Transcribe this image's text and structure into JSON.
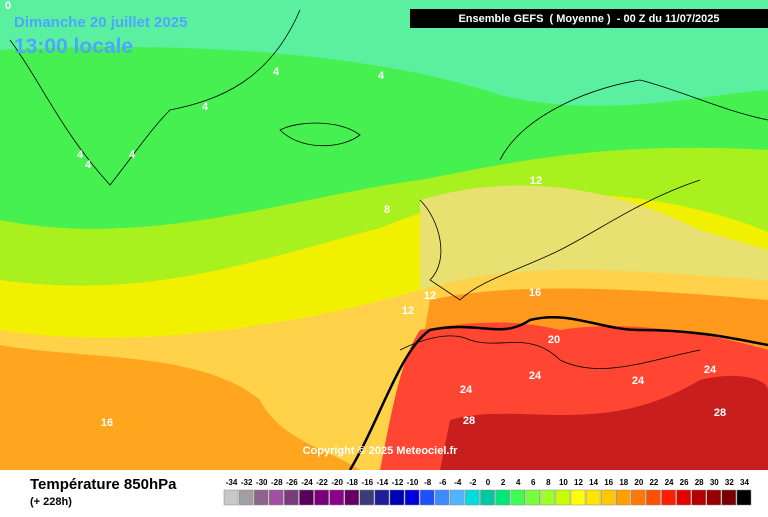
{
  "header": {
    "date": "Dimanche 20 juillet 2025",
    "time": "13:00 locale",
    "run": "Ensemble GEFS  ( Moyenne )  - 00 Z du 11/07/2025"
  },
  "map": {
    "contour_labels": [
      0,
      4,
      4,
      4,
      4,
      4,
      4,
      8,
      12,
      12,
      12,
      16,
      16,
      20,
      24,
      24,
      24,
      24,
      28,
      28
    ],
    "copyright": "Copyright © 2025 Meteociel.fr"
  },
  "legend": {
    "title": "Température 850hPa",
    "subtitle": "(+ 228h)",
    "ticks": [
      -34,
      -32,
      -30,
      -28,
      -26,
      -24,
      -22,
      -20,
      -18,
      -16,
      -14,
      -12,
      -10,
      -8,
      -6,
      -4,
      -2,
      0,
      2,
      4,
      6,
      8,
      10,
      12,
      14,
      16,
      18,
      20,
      22,
      24,
      26,
      28,
      30,
      32,
      34
    ],
    "colors": [
      "#c8c8c8",
      "#a0a0a0",
      "#8c648c",
      "#a050a0",
      "#783c78",
      "#5a005a",
      "#780078",
      "#8c008c",
      "#640064",
      "#3c3c78",
      "#1e1e96",
      "#0000b4",
      "#0000dc",
      "#1e50ff",
      "#3c8cff",
      "#50b4ff",
      "#00dcdc",
      "#00c8a0",
      "#00e678",
      "#3cff50",
      "#78ff3c",
      "#a0ff28",
      "#c8ff00",
      "#ffff00",
      "#ffe600",
      "#ffc800",
      "#ffa000",
      "#ff7800",
      "#ff5000",
      "#ff1e00",
      "#e60000",
      "#b40000",
      "#960000",
      "#780000",
      "#000000"
    ]
  }
}
